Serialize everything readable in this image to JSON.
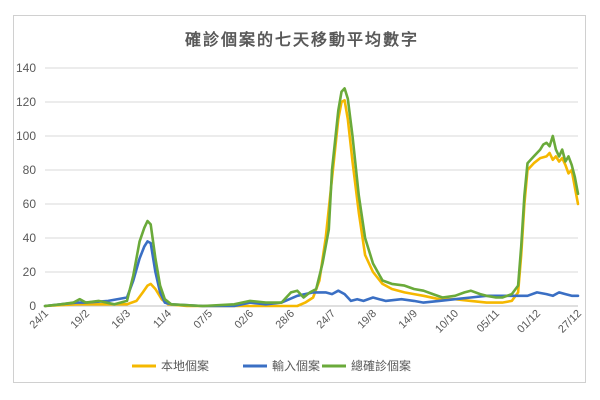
{
  "chart_data": {
    "type": "line",
    "title": "確診個案的七天移動平均數字",
    "xlabel": "",
    "ylabel": "",
    "ylim": [
      0,
      140
    ],
    "yticks": [
      0,
      20,
      40,
      60,
      80,
      100,
      120,
      140
    ],
    "grid": true,
    "legend_position": "bottom",
    "x_tick_labels": [
      "24/1",
      "19/2",
      "16/3",
      "11/4",
      "07/5",
      "02/6",
      "28/6",
      "24/7",
      "19/8",
      "14/9",
      "10/10",
      "05/11",
      "01/12",
      "27/12"
    ],
    "x_tick_index": [
      0,
      26,
      52,
      78,
      104,
      130,
      156,
      182,
      208,
      234,
      260,
      286,
      312,
      338
    ],
    "series": [
      {
        "name": "本地個案",
        "color": "#f5b800",
        "points": [
          [
            0,
            0
          ],
          [
            20,
            1
          ],
          [
            40,
            1
          ],
          [
            52,
            1
          ],
          [
            58,
            3
          ],
          [
            62,
            8
          ],
          [
            65,
            12
          ],
          [
            67,
            13
          ],
          [
            70,
            10
          ],
          [
            74,
            4
          ],
          [
            78,
            1
          ],
          [
            90,
            0
          ],
          [
            120,
            0
          ],
          [
            150,
            0
          ],
          [
            160,
            0
          ],
          [
            165,
            2
          ],
          [
            170,
            5
          ],
          [
            174,
            15
          ],
          [
            178,
            40
          ],
          [
            182,
            75
          ],
          [
            186,
            110
          ],
          [
            188,
            120
          ],
          [
            190,
            121
          ],
          [
            192,
            110
          ],
          [
            195,
            85
          ],
          [
            199,
            55
          ],
          [
            203,
            30
          ],
          [
            208,
            20
          ],
          [
            214,
            13
          ],
          [
            220,
            10
          ],
          [
            228,
            8
          ],
          [
            234,
            7
          ],
          [
            240,
            6
          ],
          [
            250,
            4
          ],
          [
            260,
            4
          ],
          [
            270,
            3
          ],
          [
            280,
            2
          ],
          [
            290,
            2
          ],
          [
            296,
            3
          ],
          [
            300,
            8
          ],
          [
            302,
            30
          ],
          [
            304,
            60
          ],
          [
            306,
            80
          ],
          [
            310,
            84
          ],
          [
            314,
            87
          ],
          [
            318,
            88
          ],
          [
            320,
            90
          ],
          [
            322,
            86
          ],
          [
            324,
            88
          ],
          [
            326,
            85
          ],
          [
            328,
            87
          ],
          [
            330,
            83
          ],
          [
            332,
            78
          ],
          [
            334,
            80
          ],
          [
            336,
            70
          ],
          [
            338,
            60
          ]
        ]
      },
      {
        "name": "輸入個案",
        "color": "#3a6fc4",
        "points": [
          [
            0,
            0
          ],
          [
            20,
            2
          ],
          [
            26,
            2
          ],
          [
            40,
            3
          ],
          [
            52,
            5
          ],
          [
            56,
            15
          ],
          [
            60,
            28
          ],
          [
            63,
            35
          ],
          [
            65,
            38
          ],
          [
            67,
            37
          ],
          [
            70,
            20
          ],
          [
            73,
            8
          ],
          [
            76,
            2
          ],
          [
            80,
            1
          ],
          [
            100,
            0
          ],
          [
            120,
            0
          ],
          [
            130,
            2
          ],
          [
            140,
            1
          ],
          [
            150,
            2
          ],
          [
            160,
            6
          ],
          [
            170,
            8
          ],
          [
            178,
            8
          ],
          [
            182,
            7
          ],
          [
            186,
            9
          ],
          [
            190,
            7
          ],
          [
            194,
            3
          ],
          [
            198,
            4
          ],
          [
            202,
            3
          ],
          [
            208,
            5
          ],
          [
            212,
            4
          ],
          [
            216,
            3
          ],
          [
            226,
            4
          ],
          [
            234,
            3
          ],
          [
            240,
            2
          ],
          [
            250,
            3
          ],
          [
            260,
            4
          ],
          [
            270,
            5
          ],
          [
            280,
            6
          ],
          [
            290,
            6
          ],
          [
            300,
            6
          ],
          [
            306,
            6
          ],
          [
            312,
            8
          ],
          [
            318,
            7
          ],
          [
            322,
            6
          ],
          [
            326,
            8
          ],
          [
            330,
            7
          ],
          [
            334,
            6
          ],
          [
            338,
            6
          ]
        ]
      },
      {
        "name": "總確診個案",
        "color": "#6aaa3a",
        "points": [
          [
            0,
            0
          ],
          [
            10,
            1
          ],
          [
            18,
            2
          ],
          [
            22,
            4
          ],
          [
            26,
            2
          ],
          [
            34,
            3
          ],
          [
            44,
            1
          ],
          [
            52,
            3
          ],
          [
            56,
            18
          ],
          [
            60,
            38
          ],
          [
            63,
            46
          ],
          [
            65,
            50
          ],
          [
            67,
            48
          ],
          [
            70,
            28
          ],
          [
            73,
            12
          ],
          [
            76,
            4
          ],
          [
            80,
            1
          ],
          [
            100,
            0
          ],
          [
            120,
            1
          ],
          [
            130,
            3
          ],
          [
            140,
            2
          ],
          [
            150,
            2
          ],
          [
            156,
            8
          ],
          [
            160,
            9
          ],
          [
            164,
            5
          ],
          [
            168,
            8
          ],
          [
            172,
            10
          ],
          [
            176,
            25
          ],
          [
            180,
            45
          ],
          [
            182,
            80
          ],
          [
            186,
            115
          ],
          [
            188,
            126
          ],
          [
            190,
            128
          ],
          [
            192,
            122
          ],
          [
            195,
            100
          ],
          [
            199,
            65
          ],
          [
            203,
            40
          ],
          [
            208,
            25
          ],
          [
            214,
            15
          ],
          [
            220,
            13
          ],
          [
            228,
            12
          ],
          [
            234,
            10
          ],
          [
            240,
            9
          ],
          [
            246,
            7
          ],
          [
            252,
            5
          ],
          [
            260,
            6
          ],
          [
            266,
            8
          ],
          [
            270,
            9
          ],
          [
            276,
            7
          ],
          [
            280,
            6
          ],
          [
            286,
            5
          ],
          [
            290,
            5
          ],
          [
            296,
            7
          ],
          [
            300,
            12
          ],
          [
            302,
            35
          ],
          [
            304,
            65
          ],
          [
            306,
            84
          ],
          [
            310,
            88
          ],
          [
            314,
            92
          ],
          [
            316,
            95
          ],
          [
            318,
            96
          ],
          [
            320,
            94
          ],
          [
            322,
            100
          ],
          [
            324,
            92
          ],
          [
            326,
            88
          ],
          [
            328,
            92
          ],
          [
            330,
            85
          ],
          [
            332,
            88
          ],
          [
            334,
            83
          ],
          [
            336,
            76
          ],
          [
            338,
            66
          ]
        ]
      }
    ]
  }
}
